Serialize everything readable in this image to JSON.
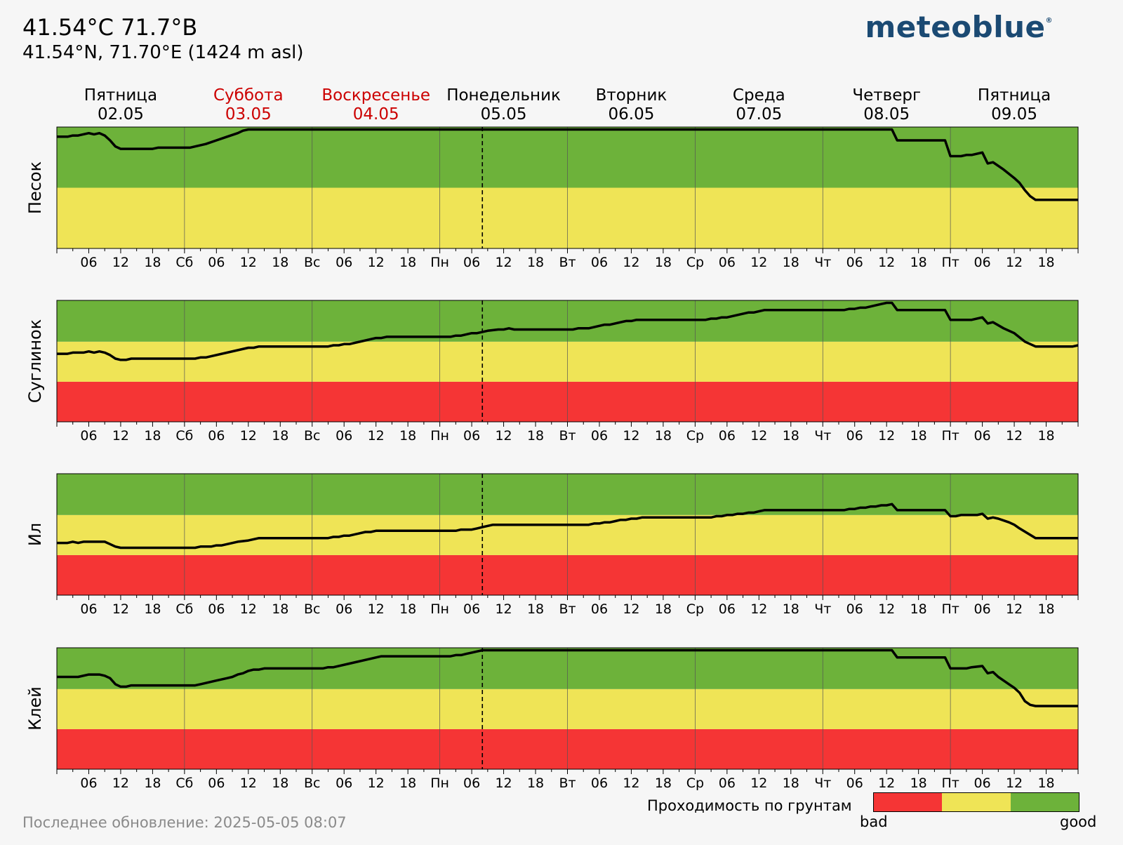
{
  "header": {
    "title": "41.54°C 71.7°B",
    "subtitle": "41.54°N, 71.70°E (1424 m asl)",
    "logo": "meteoblue",
    "logo_mark": "®"
  },
  "footer": {
    "last_update": "Последнее обновление: 2025-05-05 08:07"
  },
  "legend": {
    "title": "Проходимость по грунтам",
    "low_label": "bad",
    "high_label": "good",
    "colors": [
      "#f53535",
      "#efe456",
      "#6db23a"
    ]
  },
  "colors": {
    "bad": "#f53535",
    "medium": "#efe456",
    "good": "#6db23a",
    "weekend_label": "#cc0000",
    "line": "#000000"
  },
  "chart_data": {
    "type": "line",
    "x_unit": "hours since 2025-05-02 00:00 (local)",
    "xlim": [
      0,
      192
    ],
    "now_marker_hour": 80,
    "days": [
      {
        "name": "Пятница",
        "date": "02.05",
        "weekend": false
      },
      {
        "name": "Суббота",
        "date": "03.05",
        "weekend": true
      },
      {
        "name": "Воскресенье",
        "date": "04.05",
        "weekend": true
      },
      {
        "name": "Понедельник",
        "date": "05.05",
        "weekend": false
      },
      {
        "name": "Вторник",
        "date": "06.05",
        "weekend": false
      },
      {
        "name": "Среда",
        "date": "07.05",
        "weekend": false
      },
      {
        "name": "Четверг",
        "date": "08.05",
        "weekend": false
      },
      {
        "name": "Пятница",
        "date": "09.05",
        "weekend": false
      }
    ],
    "day_abbrevs": [
      "",
      "Сб",
      "Вс",
      "Пн",
      "Вт",
      "Ср",
      "Чт",
      "Пт"
    ],
    "hour_ticks": [
      "06",
      "12",
      "18"
    ],
    "panels": [
      {
        "ylabel": "Песок",
        "ylim": [
          0,
          1
        ],
        "bands": [
          {
            "from": 0,
            "to": 0.5,
            "level": "medium"
          },
          {
            "from": 0.5,
            "to": 1,
            "level": "good"
          }
        ],
        "points": [
          [
            0,
            0.92
          ],
          [
            2,
            0.92
          ],
          [
            3,
            0.93
          ],
          [
            4,
            0.93
          ],
          [
            6,
            0.95
          ],
          [
            7,
            0.94
          ],
          [
            8,
            0.95
          ],
          [
            9,
            0.93
          ],
          [
            10,
            0.89
          ],
          [
            11,
            0.84
          ],
          [
            12,
            0.82
          ],
          [
            13,
            0.82
          ],
          [
            18,
            0.82
          ],
          [
            19,
            0.83
          ],
          [
            25,
            0.83
          ],
          [
            26,
            0.84
          ],
          [
            28,
            0.86
          ],
          [
            30,
            0.89
          ],
          [
            32,
            0.92
          ],
          [
            34,
            0.95
          ],
          [
            35,
            0.97
          ],
          [
            36,
            0.98
          ],
          [
            157,
            0.98
          ],
          [
            158,
            0.89
          ],
          [
            167,
            0.89
          ],
          [
            168,
            0.76
          ],
          [
            170,
            0.76
          ],
          [
            171,
            0.77
          ],
          [
            172,
            0.77
          ],
          [
            174,
            0.79
          ],
          [
            175,
            0.7
          ],
          [
            176,
            0.71
          ],
          [
            178,
            0.65
          ],
          [
            180,
            0.58
          ],
          [
            181,
            0.54
          ],
          [
            182,
            0.48
          ],
          [
            183,
            0.43
          ],
          [
            184,
            0.4
          ],
          [
            192,
            0.4
          ]
        ]
      },
      {
        "ylabel": "Суглинок",
        "ylim": [
          0,
          1
        ],
        "bands": [
          {
            "from": 0,
            "to": 0.33,
            "level": "bad"
          },
          {
            "from": 0.33,
            "to": 0.66,
            "level": "medium"
          },
          {
            "from": 0.66,
            "to": 1,
            "level": "good"
          }
        ],
        "points": [
          [
            0,
            0.56
          ],
          [
            2,
            0.56
          ],
          [
            3,
            0.57
          ],
          [
            5,
            0.57
          ],
          [
            6,
            0.58
          ],
          [
            7,
            0.57
          ],
          [
            8,
            0.58
          ],
          [
            9,
            0.57
          ],
          [
            10,
            0.55
          ],
          [
            11,
            0.52
          ],
          [
            12,
            0.51
          ],
          [
            13,
            0.51
          ],
          [
            14,
            0.52
          ],
          [
            26,
            0.52
          ],
          [
            27,
            0.53
          ],
          [
            28,
            0.53
          ],
          [
            36,
            0.61
          ],
          [
            37,
            0.61
          ],
          [
            38,
            0.62
          ],
          [
            51,
            0.62
          ],
          [
            52,
            0.63
          ],
          [
            53,
            0.63
          ],
          [
            54,
            0.64
          ],
          [
            55,
            0.64
          ],
          [
            60,
            0.69
          ],
          [
            61,
            0.69
          ],
          [
            62,
            0.7
          ],
          [
            74,
            0.7
          ],
          [
            75,
            0.71
          ],
          [
            76,
            0.71
          ],
          [
            77,
            0.72
          ],
          [
            78,
            0.73
          ],
          [
            79,
            0.73
          ],
          [
            81,
            0.75
          ],
          [
            83,
            0.76
          ],
          [
            84,
            0.76
          ],
          [
            85,
            0.77
          ],
          [
            86,
            0.76
          ],
          [
            97,
            0.76
          ],
          [
            98,
            0.77
          ],
          [
            100,
            0.77
          ],
          [
            103,
            0.8
          ],
          [
            104,
            0.8
          ],
          [
            107,
            0.83
          ],
          [
            108,
            0.83
          ],
          [
            109,
            0.84
          ],
          [
            122,
            0.84
          ],
          [
            123,
            0.85
          ],
          [
            124,
            0.85
          ],
          [
            125,
            0.86
          ],
          [
            126,
            0.86
          ],
          [
            130,
            0.9
          ],
          [
            131,
            0.9
          ],
          [
            133,
            0.92
          ],
          [
            148,
            0.92
          ],
          [
            149,
            0.93
          ],
          [
            150,
            0.93
          ],
          [
            151,
            0.94
          ],
          [
            152,
            0.94
          ],
          [
            154,
            0.96
          ],
          [
            155,
            0.97
          ],
          [
            156,
            0.98
          ],
          [
            157,
            0.98
          ],
          [
            158,
            0.92
          ],
          [
            167,
            0.92
          ],
          [
            168,
            0.84
          ],
          [
            172,
            0.84
          ],
          [
            174,
            0.86
          ],
          [
            175,
            0.81
          ],
          [
            176,
            0.82
          ],
          [
            178,
            0.77
          ],
          [
            180,
            0.73
          ],
          [
            182,
            0.66
          ],
          [
            184,
            0.62
          ],
          [
            185,
            0.62
          ],
          [
            191,
            0.62
          ],
          [
            192,
            0.63
          ]
        ]
      },
      {
        "ylabel": "Ил",
        "ylim": [
          0,
          1
        ],
        "bands": [
          {
            "from": 0,
            "to": 0.33,
            "level": "bad"
          },
          {
            "from": 0.33,
            "to": 0.66,
            "level": "medium"
          },
          {
            "from": 0.66,
            "to": 1,
            "level": "good"
          }
        ],
        "points": [
          [
            0,
            0.43
          ],
          [
            2,
            0.43
          ],
          [
            3,
            0.44
          ],
          [
            4,
            0.43
          ],
          [
            5,
            0.44
          ],
          [
            9,
            0.44
          ],
          [
            10,
            0.42
          ],
          [
            11,
            0.4
          ],
          [
            12,
            0.39
          ],
          [
            26,
            0.39
          ],
          [
            27,
            0.4
          ],
          [
            29,
            0.4
          ],
          [
            30,
            0.41
          ],
          [
            31,
            0.41
          ],
          [
            34,
            0.44
          ],
          [
            36,
            0.45
          ],
          [
            38,
            0.47
          ],
          [
            51,
            0.47
          ],
          [
            52,
            0.48
          ],
          [
            53,
            0.48
          ],
          [
            54,
            0.49
          ],
          [
            55,
            0.49
          ],
          [
            58,
            0.52
          ],
          [
            59,
            0.52
          ],
          [
            60,
            0.53
          ],
          [
            75,
            0.53
          ],
          [
            76,
            0.54
          ],
          [
            78,
            0.54
          ],
          [
            79,
            0.55
          ],
          [
            80,
            0.56
          ],
          [
            82,
            0.58
          ],
          [
            96,
            0.58
          ],
          [
            100,
            0.58
          ],
          [
            101,
            0.59
          ],
          [
            102,
            0.59
          ],
          [
            103,
            0.6
          ],
          [
            104,
            0.6
          ],
          [
            105,
            0.61
          ],
          [
            106,
            0.62
          ],
          [
            107,
            0.62
          ],
          [
            108,
            0.63
          ],
          [
            109,
            0.63
          ],
          [
            110,
            0.64
          ],
          [
            123,
            0.64
          ],
          [
            124,
            0.65
          ],
          [
            125,
            0.65
          ],
          [
            126,
            0.66
          ],
          [
            127,
            0.66
          ],
          [
            128,
            0.67
          ],
          [
            129,
            0.67
          ],
          [
            130,
            0.68
          ],
          [
            131,
            0.68
          ],
          [
            132,
            0.69
          ],
          [
            133,
            0.7
          ],
          [
            148,
            0.7
          ],
          [
            149,
            0.71
          ],
          [
            150,
            0.71
          ],
          [
            151,
            0.72
          ],
          [
            152,
            0.72
          ],
          [
            153,
            0.73
          ],
          [
            154,
            0.73
          ],
          [
            155,
            0.74
          ],
          [
            156,
            0.74
          ],
          [
            157,
            0.75
          ],
          [
            158,
            0.7
          ],
          [
            167,
            0.7
          ],
          [
            168,
            0.65
          ],
          [
            169,
            0.65
          ],
          [
            170,
            0.66
          ],
          [
            173,
            0.66
          ],
          [
            174,
            0.67
          ],
          [
            175,
            0.63
          ],
          [
            176,
            0.64
          ],
          [
            177,
            0.63
          ],
          [
            179,
            0.6
          ],
          [
            180,
            0.58
          ],
          [
            181,
            0.55
          ],
          [
            184,
            0.47
          ],
          [
            192,
            0.47
          ]
        ]
      },
      {
        "ylabel": "Клей",
        "ylim": [
          0,
          1
        ],
        "bands": [
          {
            "from": 0,
            "to": 0.33,
            "level": "bad"
          },
          {
            "from": 0.33,
            "to": 0.66,
            "level": "medium"
          },
          {
            "from": 0.66,
            "to": 1,
            "level": "good"
          }
        ],
        "points": [
          [
            0,
            0.76
          ],
          [
            2,
            0.76
          ],
          [
            4,
            0.76
          ],
          [
            6,
            0.78
          ],
          [
            8,
            0.78
          ],
          [
            9,
            0.77
          ],
          [
            10,
            0.75
          ],
          [
            11,
            0.7
          ],
          [
            12,
            0.68
          ],
          [
            13,
            0.68
          ],
          [
            14,
            0.69
          ],
          [
            26,
            0.69
          ],
          [
            27,
            0.7
          ],
          [
            28,
            0.71
          ],
          [
            30,
            0.73
          ],
          [
            32,
            0.75
          ],
          [
            33,
            0.76
          ],
          [
            34,
            0.78
          ],
          [
            35,
            0.79
          ],
          [
            36,
            0.81
          ],
          [
            37,
            0.82
          ],
          [
            38,
            0.82
          ],
          [
            39,
            0.83
          ],
          [
            50,
            0.83
          ],
          [
            51,
            0.84
          ],
          [
            52,
            0.84
          ],
          [
            55,
            0.87
          ],
          [
            59,
            0.91
          ],
          [
            60,
            0.92
          ],
          [
            61,
            0.93
          ],
          [
            74,
            0.93
          ],
          [
            75,
            0.94
          ],
          [
            76,
            0.94
          ],
          [
            77,
            0.95
          ],
          [
            78,
            0.96
          ],
          [
            79,
            0.97
          ],
          [
            80,
            0.98
          ],
          [
            157,
            0.98
          ],
          [
            158,
            0.92
          ],
          [
            167,
            0.92
          ],
          [
            168,
            0.83
          ],
          [
            171,
            0.83
          ],
          [
            172,
            0.84
          ],
          [
            174,
            0.85
          ],
          [
            175,
            0.79
          ],
          [
            176,
            0.8
          ],
          [
            177,
            0.76
          ],
          [
            178,
            0.73
          ],
          [
            179,
            0.7
          ],
          [
            180,
            0.67
          ],
          [
            181,
            0.63
          ],
          [
            182,
            0.56
          ],
          [
            183,
            0.53
          ],
          [
            184,
            0.52
          ],
          [
            185,
            0.52
          ],
          [
            192,
            0.52
          ]
        ]
      }
    ]
  }
}
